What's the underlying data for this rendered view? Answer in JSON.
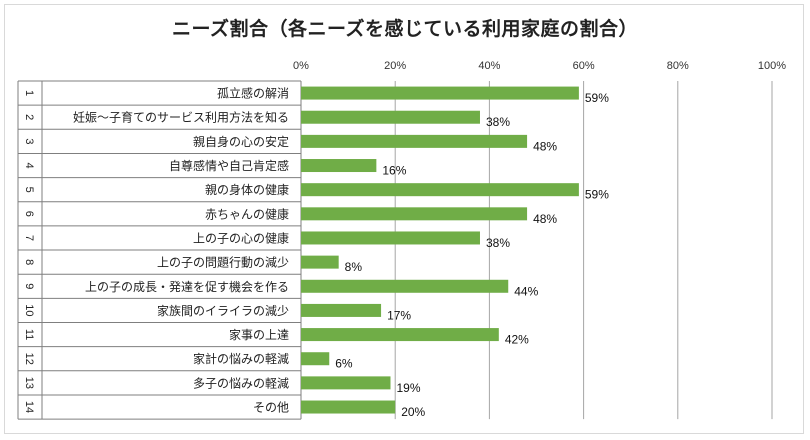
{
  "chart_data": {
    "type": "bar",
    "orientation": "horizontal",
    "title": "ニーズ割合（各ニーズを感じている利用家庭の割合）",
    "xlim": [
      0,
      100
    ],
    "ticks": [
      "0%",
      "20%",
      "40%",
      "60%",
      "80%",
      "100%"
    ],
    "tick_values": [
      0,
      20,
      40,
      60,
      80,
      100
    ],
    "grid": true,
    "bar_color": "#70ad47",
    "categories": [
      {
        "index": "1",
        "label": "孤立感の解消",
        "value": 59,
        "value_label": "59%"
      },
      {
        "index": "2",
        "label": "妊娠～子育てのサービス利用方法を知る",
        "value": 38,
        "value_label": "38%"
      },
      {
        "index": "3",
        "label": "親自身の心の安定",
        "value": 48,
        "value_label": "48%"
      },
      {
        "index": "4",
        "label": "自尊感情や自己肯定感",
        "value": 16,
        "value_label": "16%"
      },
      {
        "index": "5",
        "label": "親の身体の健康",
        "value": 59,
        "value_label": "59%"
      },
      {
        "index": "6",
        "label": "赤ちゃんの健康",
        "value": 48,
        "value_label": "48%"
      },
      {
        "index": "7",
        "label": "上の子の心の健康",
        "value": 38,
        "value_label": "38%"
      },
      {
        "index": "8",
        "label": "上の子の問題行動の減少",
        "value": 8,
        "value_label": "8%"
      },
      {
        "index": "9",
        "label": "上の子の成長・発達を促す機会を作る",
        "value": 44,
        "value_label": "44%"
      },
      {
        "index": "10",
        "label": "家族間のイライラの減少",
        "value": 17,
        "value_label": "17%"
      },
      {
        "index": "11",
        "label": "家事の上達",
        "value": 42,
        "value_label": "42%"
      },
      {
        "index": "12",
        "label": "家計の悩みの軽減",
        "value": 6,
        "value_label": "6%"
      },
      {
        "index": "13",
        "label": "多子の悩みの軽減",
        "value": 19,
        "value_label": "19%"
      },
      {
        "index": "14",
        "label": "その他",
        "value": 20,
        "value_label": "20%"
      }
    ]
  }
}
